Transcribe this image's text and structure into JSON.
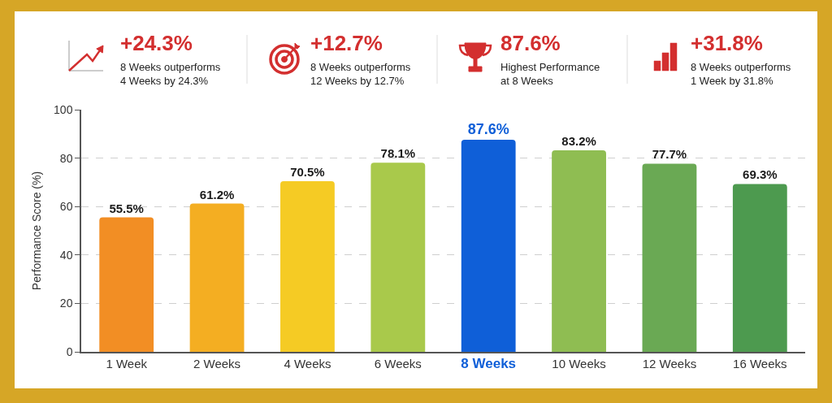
{
  "chart_data": {
    "type": "bar",
    "ylabel": "Performance Score (%)",
    "categories": [
      "1 Week",
      "2 Weeks",
      "4 Weeks",
      "6 Weeks",
      "8 Weeks",
      "10 Weeks",
      "12 Weeks",
      "16 Weeks"
    ],
    "values": [
      55.5,
      61.2,
      70.5,
      78.1,
      87.6,
      83.2,
      77.7,
      69.3
    ],
    "colors": [
      "#f28e24",
      "#f4ae22",
      "#f5cb24",
      "#a9c94b",
      "#0f5fd8",
      "#8fbd52",
      "#6aa954",
      "#4d9a4f"
    ],
    "value_labels": [
      "55.5%",
      "61.2%",
      "70.5%",
      "78.1%",
      "87.6%",
      "83.2%",
      "77.7%",
      "69.3%"
    ],
    "ylim": [
      0,
      100
    ],
    "yticks": [
      0,
      20,
      40,
      60,
      80,
      100
    ],
    "grid": "y",
    "annotations": [
      "+24.3%",
      "8 Weeks outperforms\n4 Weeks by 24.3%",
      "+12.7%",
      "8 Weeks outperforms\n12 Weeks by 12.7%",
      "87.6%",
      "Highest Performance\nat 8 Weeks",
      "+31.8%",
      "8 Weeks outperforms\n1 Week by 31.8%"
    ]
  }
}
